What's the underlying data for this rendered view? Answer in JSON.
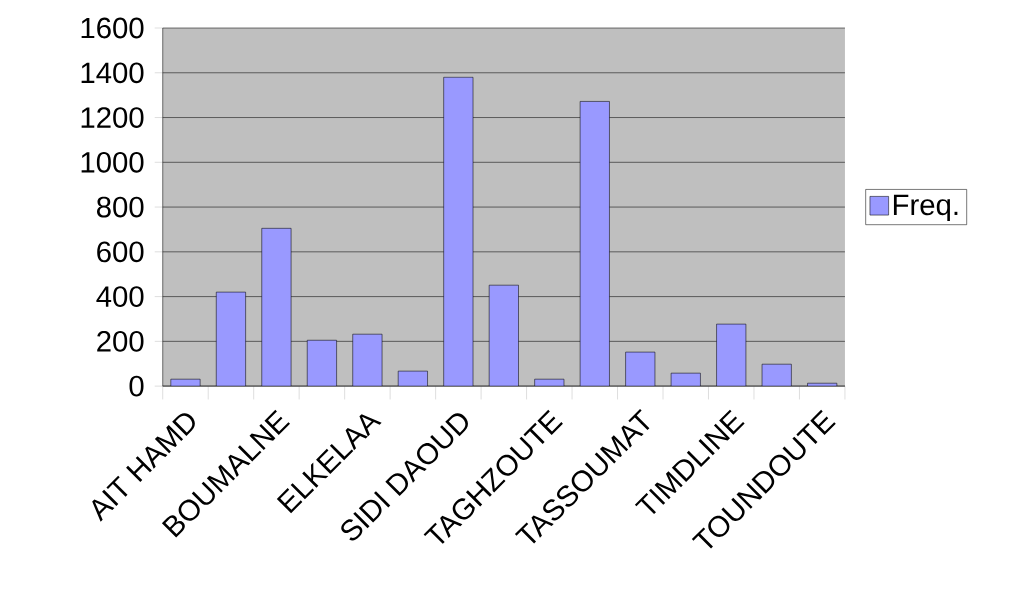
{
  "chart_data": {
    "type": "bar",
    "categories": [
      "AIT HAMD",
      null,
      "BOUMALNE",
      null,
      "ELKELAA",
      null,
      "SIDI DAOUD",
      null,
      "TAGHZOUTE",
      null,
      "TASSOUMAT",
      null,
      "TIMDLINE",
      null,
      "TOUNDOUTE"
    ],
    "series": [
      {
        "name": "Freq.",
        "color": "#9999ff",
        "values": [
          31,
          420,
          705,
          205,
          232,
          67,
          1380,
          451,
          31,
          1272,
          152,
          58,
          277,
          98,
          13
        ]
      }
    ],
    "ylim": [
      0,
      1600
    ],
    "yticks": [
      0,
      200,
      400,
      600,
      800,
      1000,
      1200,
      1400,
      1600
    ],
    "grid": "y",
    "legend": "right"
  }
}
